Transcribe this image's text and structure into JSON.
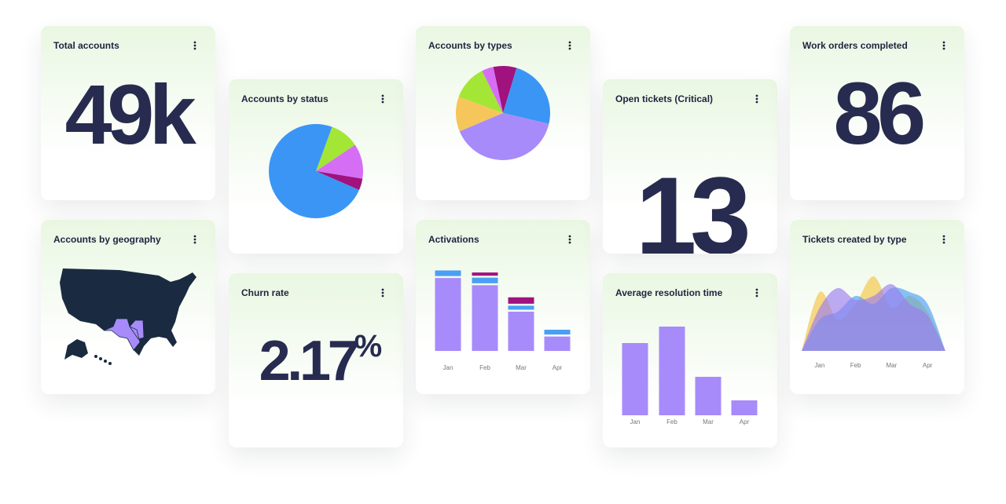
{
  "cards": [
    {
      "title": "Total accounts",
      "value": "49k"
    },
    {
      "title": "Accounts by geography"
    },
    {
      "title": "Accounts by status",
      "chart": {
        "type": "pie",
        "values": [
          10,
          12,
          4,
          74
        ],
        "colors": [
          "#a3e635",
          "#d66ef5",
          "#a0127e",
          "#3b95f5"
        ]
      }
    },
    {
      "title": "Churn rate",
      "value": "2.17",
      "unit": "%"
    },
    {
      "title": "Accounts by types",
      "chart": {
        "type": "pie",
        "values": [
          8,
          24,
          40,
          12,
          12,
          4
        ],
        "colors": [
          "#a0127e",
          "#3b95f5",
          "#a78bfa",
          "#f7c65a",
          "#a3e635",
          "#d66ef5"
        ]
      }
    },
    {
      "title": "Activations",
      "chart": {
        "type": "stacked-bar",
        "categories": [
          "Jan",
          "Feb",
          "Mar",
          "Apr"
        ],
        "series": [
          {
            "color": "#a78bfa",
            "values": [
              91,
              82,
              49,
              18
            ]
          },
          {
            "color": "#4a9ff5",
            "values": [
              7,
              7,
              5,
              6
            ]
          },
          {
            "color": "#a0127e",
            "values": [
              null,
              4,
              8,
              null
            ]
          }
        ]
      }
    },
    {
      "title": "Open tickets (Critical)",
      "value": "13"
    },
    {
      "title": "Average resolution time",
      "chart": {
        "type": "bar",
        "categories": [
          "Jan",
          "Feb",
          "Mar",
          "Apr"
        ],
        "color": "#a78bfa",
        "values": [
          92,
          113,
          49,
          19
        ]
      }
    },
    {
      "title": "Work orders completed",
      "value": "86"
    },
    {
      "title": "Tickets created by type",
      "chart": {
        "type": "area",
        "categories": [
          null,
          "Jan",
          null,
          "Feb",
          null,
          "Mar",
          null,
          "Apr",
          null
        ],
        "series": [
          {
            "color": "#f5c542",
            "values": [
              0,
              75,
              40,
              60,
              95,
              55,
              70,
              50,
              0
            ]
          },
          {
            "color": "#4a9ff5",
            "values": [
              0,
              40,
              50,
              70,
              60,
              80,
              75,
              60,
              0
            ]
          },
          {
            "color": "#9b7cf0",
            "values": [
              0,
              55,
              80,
              65,
              70,
              85,
              60,
              45,
              0
            ]
          }
        ]
      }
    }
  ]
}
